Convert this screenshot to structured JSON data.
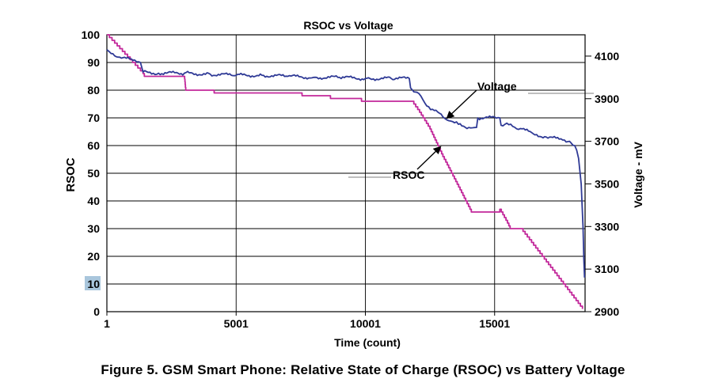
{
  "caption": "Figure 5. GSM Smart Phone: Relative State of Charge (RSOC) vs Battery Voltage",
  "colors": {
    "voltage": "#2f3a96",
    "rsoc": "#c2279a",
    "highlight": "#a9c6dc",
    "grid": "#000000"
  },
  "chart_data": {
    "type": "line",
    "title": "RSOC vs Voltage",
    "xlabel": "Time (count)",
    "ylabel": "RSOC",
    "y2label": "Voltage - mV",
    "xlim": [
      1,
      18500
    ],
    "ylim": [
      0,
      100
    ],
    "y2lim": [
      2900,
      4200
    ],
    "x_ticks": [
      1,
      5001,
      10001,
      15001
    ],
    "x_tick_labels": [
      "1",
      "5001",
      "10001",
      "15001"
    ],
    "y_ticks": [
      0,
      10,
      20,
      30,
      40,
      50,
      60,
      70,
      80,
      90,
      100
    ],
    "y_tick_labels": [
      "0",
      "10",
      "20",
      "30",
      "40",
      "50",
      "60",
      "70",
      "80",
      "90",
      "100"
    ],
    "highlighted_y_tick": "10",
    "y2_ticks": [
      2900,
      3100,
      3300,
      3500,
      3700,
      3900,
      4100
    ],
    "y2_tick_labels": [
      "2900",
      "3100",
      "3300",
      "3500",
      "3700",
      "3900",
      "4100"
    ],
    "annotations": [
      {
        "label": "Voltage",
        "series": "Voltage"
      },
      {
        "label": "RSOC",
        "series": "RSOC"
      }
    ],
    "series": [
      {
        "name": "RSOC",
        "axis": "left",
        "x": [
          1,
          200,
          1400,
          1450,
          3000,
          3050,
          4100,
          4150,
          7500,
          7550,
          8600,
          8650,
          9800,
          9850,
          11800,
          12100,
          12500,
          13000,
          13500,
          14100,
          14150,
          15100,
          15200,
          15500,
          15600,
          16000,
          16100,
          18400
        ],
        "values": [
          100,
          98,
          86,
          85,
          85,
          80,
          80,
          79,
          79,
          78,
          78,
          77,
          77,
          76,
          76,
          72,
          66,
          56,
          47,
          36,
          36,
          36,
          37,
          32,
          30,
          30,
          29,
          1
        ]
      },
      {
        "name": "Voltage",
        "axis": "right",
        "x": [
          1,
          100,
          500,
          1000,
          1300,
          1400,
          2000,
          3000,
          4000,
          5000,
          6000,
          7000,
          8000,
          9000,
          10000,
          11000,
          11700,
          11750,
          12000,
          12300,
          12600,
          13000,
          13300,
          13600,
          14000,
          14300,
          14350,
          15200,
          15250,
          15400,
          15700,
          16000,
          16500,
          17000,
          17500,
          17900,
          18100,
          18250,
          18350,
          18420,
          18450,
          18480
        ],
        "values": [
          4130,
          4120,
          4095,
          4080,
          4070,
          4025,
          4020,
          4020,
          4015,
          4010,
          4010,
          4005,
          4000,
          4000,
          3995,
          3995,
          3995,
          3950,
          3930,
          3880,
          3850,
          3815,
          3795,
          3780,
          3765,
          3765,
          3810,
          3810,
          3775,
          3780,
          3770,
          3760,
          3735,
          3720,
          3710,
          3700,
          3680,
          3620,
          3500,
          3300,
          3150,
          3060
        ]
      }
    ]
  }
}
